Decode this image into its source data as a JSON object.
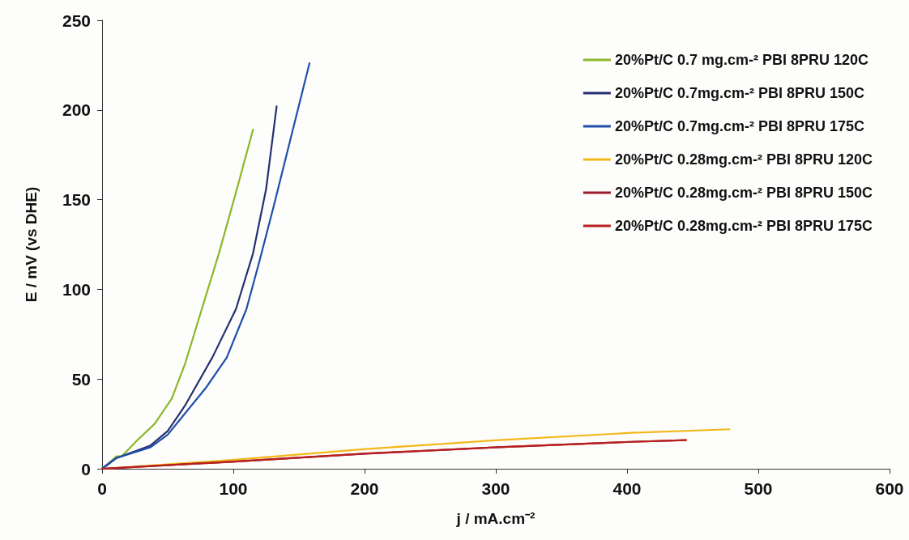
{
  "chart_data": {
    "type": "line",
    "xlabel": "j / mA.cm⁻²",
    "ylabel": "E / mV (vs DHE)",
    "xlim": [
      0,
      600
    ],
    "xticks": [
      0,
      100,
      200,
      300,
      400,
      500,
      600
    ],
    "ylim": [
      0,
      250
    ],
    "yticks": [
      0,
      50,
      100,
      150,
      200,
      250
    ],
    "grid": false,
    "legend": "top right",
    "marker": "none",
    "line_style": "solid",
    "series": [
      {
        "name": "20%Pt/C 0.7 mg.cm-² PBI 8PRU 120C",
        "color": "#8db62a",
        "x": [
          0,
          11,
          15,
          27,
          40,
          53,
          63,
          76,
          89,
          102,
          115
        ],
        "values": [
          0,
          7,
          7,
          16,
          25,
          39,
          58,
          89,
          120,
          154,
          189
        ]
      },
      {
        "name": "20%Pt/C 0.7mg.cm-² PBI 8PRU 150C",
        "color": "#27306e",
        "x": [
          0,
          11,
          37,
          50,
          63,
          84,
          102,
          115,
          125,
          133
        ],
        "values": [
          0,
          6,
          13,
          21,
          35,
          62,
          89,
          120,
          156,
          202
        ]
      },
      {
        "name": "20%Pt/C 0.7mg.cm-² PBI 8PRU 175C",
        "color": "#1f4fa8",
        "x": [
          0,
          11,
          37,
          50,
          60,
          79,
          95,
          110,
          120,
          131,
          144,
          158
        ],
        "values": [
          0,
          6,
          12,
          19,
          28,
          45,
          62,
          89,
          116,
          147,
          185,
          226
        ]
      },
      {
        "name": "20%Pt/C 0.28mg.cm-² PBI 8PRU 120C",
        "color": "#f2b81a",
        "x": [
          0,
          101,
          201,
          302,
          403,
          478
        ],
        "values": [
          0,
          5,
          11,
          16,
          20,
          22
        ]
      },
      {
        "name": "20%Pt/C 0.28mg.cm-² PBI 8PRU 150C",
        "color": "#9b1a2a",
        "x": [
          0,
          101,
          201,
          302,
          403,
          445
        ],
        "values": [
          0,
          4,
          8.4,
          12,
          15,
          16
        ]
      },
      {
        "name": "20%Pt/C 0.28mg.cm-² PBI 8PRU 175C",
        "color": "#b82020",
        "x": [
          0,
          101,
          201,
          302,
          403,
          445
        ],
        "values": [
          0,
          4,
          8.5,
          12,
          15,
          16
        ]
      }
    ]
  }
}
